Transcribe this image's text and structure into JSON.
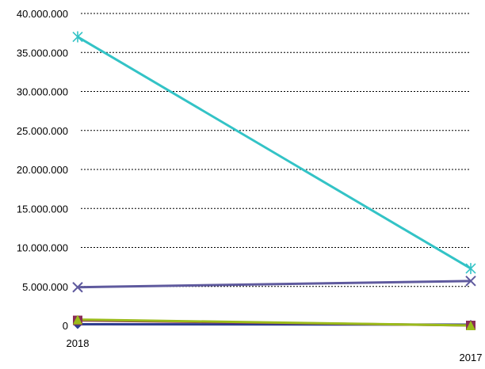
{
  "chart_data": {
    "type": "line",
    "categories": [
      "2018",
      "2017"
    ],
    "ylim": [
      0,
      40000000
    ],
    "y_ticks": [
      0,
      5000000,
      10000000,
      15000000,
      20000000,
      25000000,
      30000000,
      35000000,
      40000000
    ],
    "y_tick_labels": [
      "0",
      "5.000.000",
      "10.000.000",
      "15.000.000",
      "20.000.000",
      "25.000.000",
      "30.000.000",
      "35.000.000",
      "40.000.000"
    ],
    "grid": true,
    "series": [
      {
        "values": [
          150000,
          100000
        ],
        "color": "#2e3d8f",
        "marker": "diamond"
      },
      {
        "values": [
          650000,
          0
        ],
        "color": "#8b2d57",
        "marker": "square"
      },
      {
        "values": [
          750000,
          0
        ],
        "color": "#9bbb1a",
        "marker": "triangle"
      },
      {
        "values": [
          4900000,
          5700000
        ],
        "color": "#5f5a9e",
        "marker": "x"
      },
      {
        "values": [
          37000000,
          7300000
        ],
        "color": "#33c3c6",
        "marker": "asterisk"
      }
    ]
  }
}
